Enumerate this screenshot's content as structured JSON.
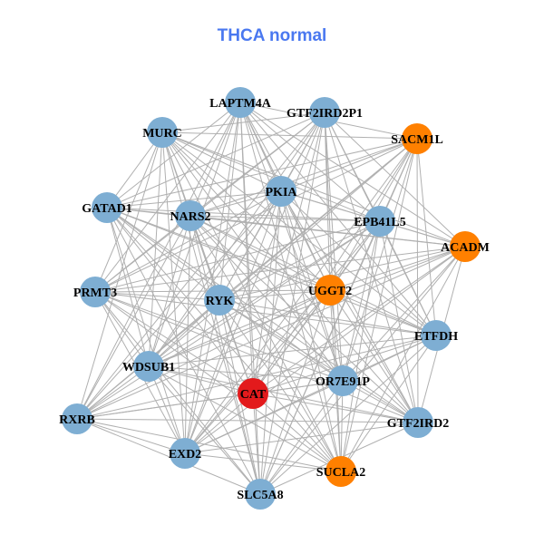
{
  "title": "THCA normal",
  "colors": {
    "blue": "#7eaed3",
    "orange": "#ff8000",
    "red": "#e31a1c",
    "edge": "#b0b0b0"
  },
  "nodes": [
    {
      "name": "LAPTM4A",
      "group": "blue"
    },
    {
      "name": "GTF2IRD2P1",
      "group": "blue"
    },
    {
      "name": "SACM1L",
      "group": "orange"
    },
    {
      "name": "MURC",
      "group": "blue"
    },
    {
      "name": "PKIA",
      "group": "blue"
    },
    {
      "name": "GATAD1",
      "group": "blue"
    },
    {
      "name": "NARS2",
      "group": "blue"
    },
    {
      "name": "EPB41L5",
      "group": "blue"
    },
    {
      "name": "ACADM",
      "group": "orange"
    },
    {
      "name": "PRMT3",
      "group": "blue"
    },
    {
      "name": "RYK",
      "group": "blue"
    },
    {
      "name": "UGGT2",
      "group": "orange"
    },
    {
      "name": "ETFDH",
      "group": "blue"
    },
    {
      "name": "WDSUB1",
      "group": "blue"
    },
    {
      "name": "OR7E91P",
      "group": "blue"
    },
    {
      "name": "CAT",
      "group": "red"
    },
    {
      "name": "RXRB",
      "group": "blue"
    },
    {
      "name": "GTF2IRD2",
      "group": "blue"
    },
    {
      "name": "EXD2",
      "group": "blue"
    },
    {
      "name": "SUCLA2",
      "group": "orange"
    },
    {
      "name": "SLC5A8",
      "group": "blue"
    }
  ],
  "missing_edges": [
    [
      "LAPTM4A",
      "GTF2IRD2P1"
    ],
    [
      "MURC",
      "LAPTM4A"
    ],
    [
      "GATAD1",
      "PRMT3"
    ],
    [
      "SACM1L",
      "ACADM"
    ],
    [
      "ETFDH",
      "GTF2IRD2"
    ],
    [
      "EXD2",
      "SLC5A8"
    ],
    [
      "RXRB",
      "PRMT3"
    ],
    [
      "RXRB",
      "GATAD1"
    ],
    [
      "SACM1L",
      "GTF2IRD2P1"
    ],
    [
      "ACADM",
      "ETFDH"
    ],
    [
      "SUCLA2",
      "GTF2IRD2"
    ],
    [
      "SLC5A8",
      "SUCLA2"
    ]
  ]
}
